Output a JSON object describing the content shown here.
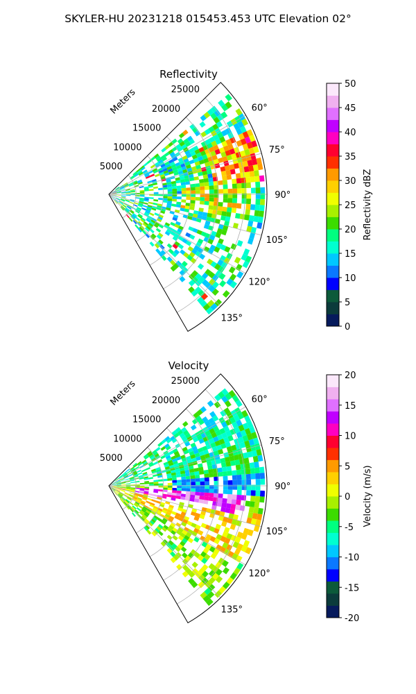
{
  "figure": {
    "suptitle": "SKYLER-HU  20231218  015453.453 UTC Elevation 02°"
  },
  "chart_data": [
    {
      "type": "heatmap",
      "subtype": "polar-sector (PPI)",
      "title": "Reflectivity",
      "range_label": "Meters",
      "range_ticks": [
        5000,
        10000,
        15000,
        20000,
        25000
      ],
      "range_tick_labels": [
        "5000",
        "10000",
        "15000",
        "20000",
        "25000"
      ],
      "rmax": 29000,
      "azimuth_range_deg": [
        45,
        150
      ],
      "azimuth_ticks": [
        60,
        75,
        90,
        105,
        120,
        135
      ],
      "azimuth_tick_labels": [
        "60°",
        "75°",
        "90°",
        "105°",
        "120°",
        "135°"
      ],
      "grid": true,
      "colorbar": {
        "label": "Reflectivity dBZ",
        "min": 0,
        "max": 50,
        "ticks": [
          0,
          5,
          10,
          15,
          20,
          25,
          30,
          35,
          40,
          45,
          50
        ],
        "colors": [
          "#061a5c",
          "#0b3b3b",
          "#0c5a3a",
          "#0000ff",
          "#0a78ff",
          "#00c8ff",
          "#00ffd0",
          "#00ff80",
          "#3cdc00",
          "#a8f000",
          "#f0ff00",
          "#ffd000",
          "#ff9a00",
          "#ff3000",
          "#ff0030",
          "#ff00c0",
          "#c000ff",
          "#e070ff",
          "#f0b0f0",
          "#fbe8fb"
        ]
      }
    },
    {
      "type": "heatmap",
      "subtype": "polar-sector (PPI)",
      "title": "Velocity",
      "range_label": "Meters",
      "range_ticks": [
        5000,
        10000,
        15000,
        20000,
        25000
      ],
      "range_tick_labels": [
        "5000",
        "10000",
        "15000",
        "20000",
        "25000"
      ],
      "rmax": 29000,
      "azimuth_range_deg": [
        45,
        150
      ],
      "azimuth_ticks": [
        60,
        75,
        90,
        105,
        120,
        135
      ],
      "azimuth_tick_labels": [
        "60°",
        "75°",
        "90°",
        "105°",
        "120°",
        "135°"
      ],
      "grid": true,
      "colorbar": {
        "label": "Velocity (m/s)",
        "min": -20,
        "max": 20,
        "ticks": [
          -20,
          -15,
          -10,
          -5,
          0,
          5,
          10,
          15,
          20
        ],
        "colors": [
          "#061a5c",
          "#0b3b3b",
          "#0c5a3a",
          "#0000ff",
          "#0a78ff",
          "#00c8ff",
          "#00ffd0",
          "#00ff80",
          "#3cdc00",
          "#a8f000",
          "#f0ff00",
          "#ffd000",
          "#ff9a00",
          "#ff3000",
          "#ff0030",
          "#ff00c0",
          "#c000ff",
          "#e070ff",
          "#f0b0f0",
          "#fbe8fb"
        ]
      }
    }
  ]
}
